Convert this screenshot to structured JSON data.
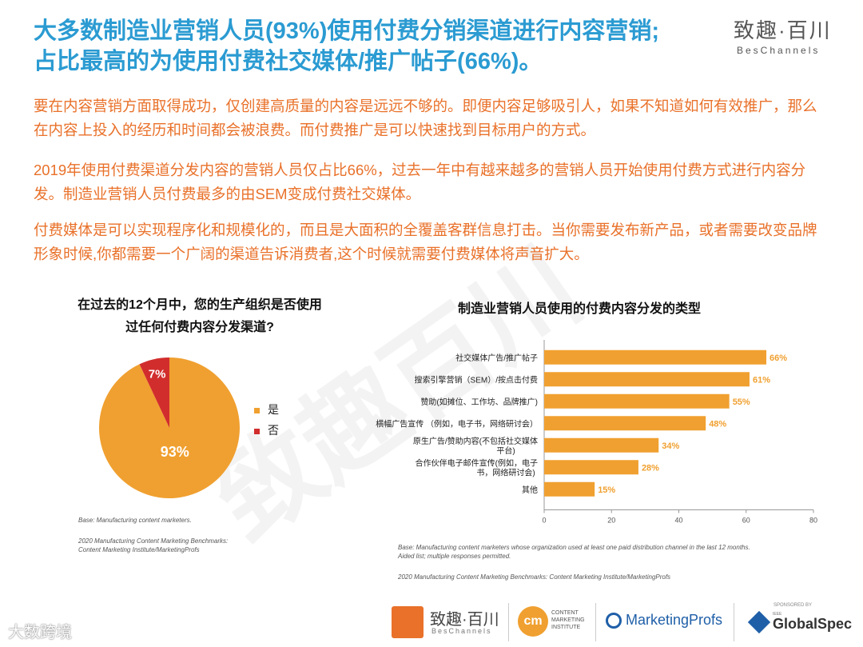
{
  "header": {
    "title_line1": "大多数制造业营销人员(93%)使用付费分销渠道进行内容营销;",
    "title_line2": "占比最高的为使用付费社交媒体/推广帖子(66%)。",
    "brand_cn": "致趣·百川",
    "brand_en": "BesChannels"
  },
  "paragraphs": [
    "要在内容营销方面取得成功，仅创建高质量的内容是远远不够的。即便内容足够吸引人，如果不知道如何有效推广，那么在内容上投入的经历和时间都会被浪费。而付费推广是可以快速找到目标用户的方式。",
    "2019年使用付费渠道分发内容的营销人员仅占比66%，过去一年中有越来越多的营销人员开始使用付费方式进行内容分发。制造业营销人员付费最多的由SEM变成付费社交媒体。",
    "付费媒体是可以实现程序化和规模化的，而且是大面积的全覆盖客群信息打击。当你需要发布新产品，或者需要改变品牌形象时候,你都需要一个广阔的渠道告诉消费者,这个时候就需要付费媒体将声音扩大。"
  ],
  "watermark": "致趣百川",
  "colors": {
    "title_blue": "#2b9bd2",
    "text_orange": "#e9712a",
    "bar_orange": "#f0a030",
    "pie_red": "#d22d2d",
    "pie_orange": "#f0a030"
  },
  "chart_data": [
    {
      "type": "pie",
      "title_line1": "在过去的12个月中，您的生产组织是否使用",
      "title_line2": "过任何付费内容分发渠道?",
      "slices": [
        {
          "label": "是",
          "value": 93,
          "display": "93%"
        },
        {
          "label": "否",
          "value": 7,
          "display": "7%"
        }
      ],
      "legend_position": "right",
      "note_base": "Base: Manufacturing content marketers.",
      "note_source_line1": "2020 Manufacturing Content Marketing Benchmarks:",
      "note_source_line2": "Content Marketing Institute/MarketingProfs"
    },
    {
      "type": "bar",
      "orientation": "horizontal",
      "title": "制造业营销人员使用的付费内容分发的类型",
      "categories": [
        [
          "社交媒体广告/推广帖子"
        ],
        [
          "搜索引擎营销（SEM）/按点击付费"
        ],
        [
          "赞助(如摊位、工作坊、品牌推广)"
        ],
        [
          "横幅广告宣传 （例如，电子书，网络研讨会）"
        ],
        [
          "原生广告/赞助内容(不包括社交媒体",
          "平台)"
        ],
        [
          "合作伙伴电子邮件宣传(例如，电子",
          "书，网络研讨会)"
        ],
        [
          "其他"
        ]
      ],
      "values": [
        66,
        61,
        55,
        48,
        34,
        28,
        15
      ],
      "value_labels": [
        "66%",
        "61%",
        "55%",
        "48%",
        "34%",
        "28%",
        "15%"
      ],
      "xlim": [
        0,
        80
      ],
      "xticks": [
        0,
        20,
        40,
        60,
        80
      ],
      "note_base_line1": "Base: Manufacturing content marketers whose organization used at least one paid distribution channel in the last 12 months.",
      "note_base_line2": "Aided list; multiple responses permitted.",
      "note_source": "2020 Manufacturing Content Marketing Benchmarks: Content Marketing Institute/MarketingProfs"
    }
  ],
  "footer": {
    "beschannels_cn": "致趣·百川",
    "beschannels_en": "BesChannels",
    "cmi_badge": "cm",
    "cmi_line1": "CONTENT",
    "cmi_line2": "MARKETING",
    "cmi_line3": "INSTITUTE",
    "marketingprofs": "MarketingProfs",
    "sponsored_by": "SPONSORED BY",
    "ieee": "IEEE",
    "globalspec": "GlobalSpec",
    "bottom_watermark": "大数跨境"
  }
}
